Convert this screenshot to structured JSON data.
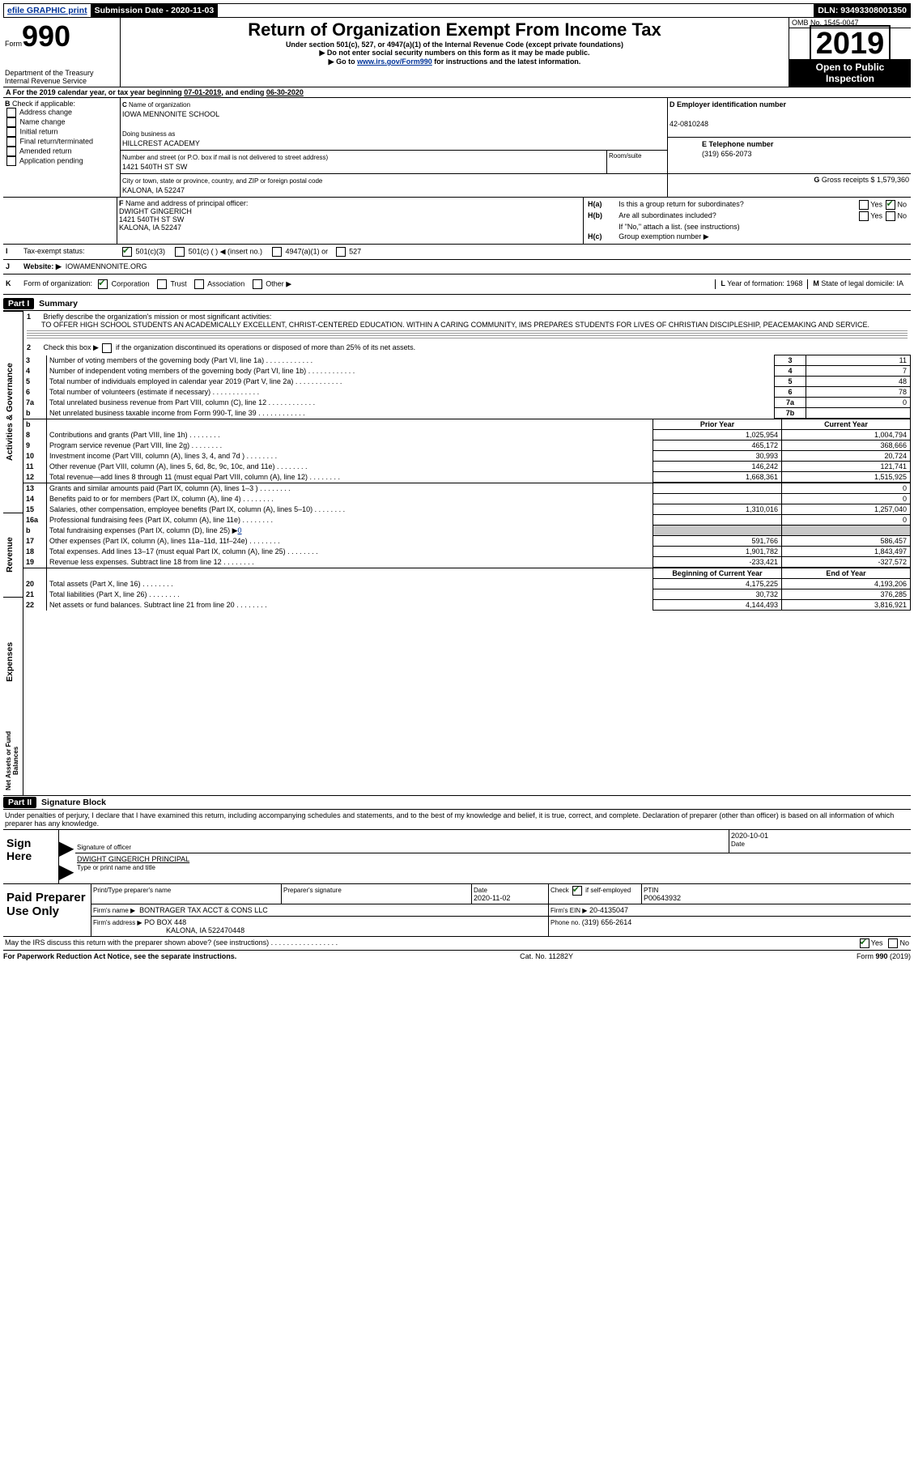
{
  "topbar": {
    "efile": "efile GRAPHIC print",
    "submission_label": "Submission Date - ",
    "submission_date": "2020-11-03",
    "dln_label": "DLN: ",
    "dln": "93493308001350"
  },
  "header": {
    "form_label": "Form",
    "form_no": "990",
    "dept1": "Department of the Treasury",
    "dept2": "Internal Revenue Service",
    "title": "Return of Organization Exempt From Income Tax",
    "subtitle": "Under section 501(c), 527, or 4947(a)(1) of the Internal Revenue Code (except private foundations)",
    "note1": "Do not enter social security numbers on this form as it may be made public.",
    "note2_pre": "Go to ",
    "note2_link": "www.irs.gov/Form990",
    "note2_post": " for instructions and the latest information.",
    "omb_label": "OMB No. ",
    "omb": "1545-0047",
    "year": "2019",
    "open1": "Open to Public",
    "open2": "Inspection"
  },
  "line_a": {
    "text_pre": "For the 2019 calendar year, or tax year beginning ",
    "begin": "07-01-2019",
    "mid": ", and ending ",
    "end": "06-30-2020"
  },
  "box_b": {
    "label": "B",
    "check_label": "Check if applicable:",
    "items": [
      "Address change",
      "Name change",
      "Initial return",
      "Final return/terminated",
      "Amended return",
      "Application pending"
    ]
  },
  "box_c": {
    "label": "C",
    "name_label": "Name of organization",
    "name": "IOWA MENNONITE SCHOOL",
    "dba_label": "Doing business as",
    "dba": "HILLCREST ACADEMY",
    "addr_label": "Number and street (or P.O. box if mail is not delivered to street address)",
    "room_label": "Room/suite",
    "addr": "1421 540TH ST SW",
    "city_label": "City or town, state or province, country, and ZIP or foreign postal code",
    "city": "KALONA, IA  52247"
  },
  "box_d": {
    "label": "D Employer identification number",
    "ein": "42-0810248"
  },
  "box_e": {
    "label": "E Telephone number",
    "phone": "(319) 656-2073"
  },
  "box_g": {
    "label": "G",
    "text": "Gross receipts $ ",
    "val": "1,579,360"
  },
  "box_f": {
    "label": "F",
    "text": "Name and address of principal officer:",
    "name": "DWIGHT GINGERICH",
    "addr": "1421 540TH ST SW",
    "city": "KALONA, IA  52247"
  },
  "box_h": {
    "a_label": "H(a)",
    "a_text": "Is this a group return for subordinates?",
    "b_label": "H(b)",
    "b_text": "Are all subordinates included?",
    "b_note": "If \"No,\" attach a list. (see instructions)",
    "c_label": "H(c)",
    "c_text": "Group exemption number ▶",
    "yes": "Yes",
    "no": "No"
  },
  "box_i": {
    "label": "I",
    "text": "Tax-exempt status:",
    "opts": [
      "501(c)(3)",
      "501(c) (  ) ◀ (insert no.)",
      "4947(a)(1) or",
      "527"
    ]
  },
  "box_j": {
    "label": "J",
    "text": "Website: ▶",
    "val": "IOWAMENNONITE.ORG"
  },
  "box_k": {
    "label": "K",
    "text": "Form of organization:",
    "opts": [
      "Corporation",
      "Trust",
      "Association",
      "Other ▶"
    ]
  },
  "box_l": {
    "label": "L",
    "text": "Year of formation: ",
    "val": "1968"
  },
  "box_m": {
    "label": "M",
    "text": "State of legal domicile: ",
    "val": "IA"
  },
  "part1": {
    "header": "Part I",
    "title": "Summary",
    "q1_label": "1",
    "q1": "Briefly describe the organization's mission or most significant activities:",
    "q1_text": "TO OFFER HIGH SCHOOL STUDENTS AN ACADEMICALLY EXCELLENT, CHRIST-CENTERED EDUCATION. WITHIN A CARING COMMUNITY, IMS PREPARES STUDENTS FOR LIVES OF CHRISTIAN DISCIPLESHIP, PEACEMAKING AND SERVICE.",
    "q2_label": "2",
    "q2": "Check this box ▶       if the organization discontinued its operations or disposed of more than 25% of its net assets.",
    "vert1": "Activities & Governance",
    "vert2": "Revenue",
    "vert3": "Expenses",
    "vert4": "Net Assets or Fund Balances",
    "rows_top": [
      {
        "n": "3",
        "t": "Number of voting members of the governing body (Part VI, line 1a)",
        "box": "3",
        "v": "11"
      },
      {
        "n": "4",
        "t": "Number of independent voting members of the governing body (Part VI, line 1b)",
        "box": "4",
        "v": "7"
      },
      {
        "n": "5",
        "t": "Total number of individuals employed in calendar year 2019 (Part V, line 2a)",
        "box": "5",
        "v": "48"
      },
      {
        "n": "6",
        "t": "Total number of volunteers (estimate if necessary)",
        "box": "6",
        "v": "78"
      },
      {
        "n": "7a",
        "t": "Total unrelated business revenue from Part VIII, column (C), line 12",
        "box": "7a",
        "v": "0"
      },
      {
        "n": "b",
        "t": "Net unrelated business taxable income from Form 990-T, line 39",
        "box": "7b",
        "v": ""
      }
    ],
    "col_prior": "Prior Year",
    "col_current": "Current Year",
    "col_boy": "Beginning of Current Year",
    "col_eoy": "End of Year",
    "rows_rev": [
      {
        "n": "8",
        "t": "Contributions and grants (Part VIII, line 1h)",
        "p": "1,025,954",
        "c": "1,004,794"
      },
      {
        "n": "9",
        "t": "Program service revenue (Part VIII, line 2g)",
        "p": "465,172",
        "c": "368,666"
      },
      {
        "n": "10",
        "t": "Investment income (Part VIII, column (A), lines 3, 4, and 7d )",
        "p": "30,993",
        "c": "20,724"
      },
      {
        "n": "11",
        "t": "Other revenue (Part VIII, column (A), lines 5, 6d, 8c, 9c, 10c, and 11e)",
        "p": "146,242",
        "c": "121,741"
      },
      {
        "n": "12",
        "t": "Total revenue—add lines 8 through 11 (must equal Part VIII, column (A), line 12)",
        "p": "1,668,361",
        "c": "1,515,925"
      }
    ],
    "rows_exp": [
      {
        "n": "13",
        "t": "Grants and similar amounts paid (Part IX, column (A), lines 1–3 )",
        "p": "",
        "c": "0"
      },
      {
        "n": "14",
        "t": "Benefits paid to or for members (Part IX, column (A), line 4)",
        "p": "",
        "c": "0"
      },
      {
        "n": "15",
        "t": "Salaries, other compensation, employee benefits (Part IX, column (A), lines 5–10)",
        "p": "1,310,016",
        "c": "1,257,040"
      },
      {
        "n": "16a",
        "t": "Professional fundraising fees (Part IX, column (A), line 11e)",
        "p": "",
        "c": "0"
      },
      {
        "n": "b",
        "t": "Total fundraising expenses (Part IX, column (D), line 25) ▶",
        "p": "grey",
        "c": "grey",
        "link": "0"
      },
      {
        "n": "17",
        "t": "Other expenses (Part IX, column (A), lines 11a–11d, 11f–24e)",
        "p": "591,766",
        "c": "586,457"
      },
      {
        "n": "18",
        "t": "Total expenses. Add lines 13–17 (must equal Part IX, column (A), line 25)",
        "p": "1,901,782",
        "c": "1,843,497"
      },
      {
        "n": "19",
        "t": "Revenue less expenses. Subtract line 18 from line 12",
        "p": "-233,421",
        "c": "-327,572"
      }
    ],
    "rows_net": [
      {
        "n": "20",
        "t": "Total assets (Part X, line 16)",
        "p": "4,175,225",
        "c": "4,193,206"
      },
      {
        "n": "21",
        "t": "Total liabilities (Part X, line 26)",
        "p": "30,732",
        "c": "376,285"
      },
      {
        "n": "22",
        "t": "Net assets or fund balances. Subtract line 21 from line 20",
        "p": "4,144,493",
        "c": "3,816,921"
      }
    ]
  },
  "part2": {
    "header": "Part II",
    "title": "Signature Block",
    "penalties": "Under penalties of perjury, I declare that I have examined this return, including accompanying schedules and statements, and to the best of my knowledge and belief, it is true, correct, and complete. Declaration of preparer (other than officer) is based on all information of which preparer has any knowledge.",
    "sign_here": "Sign Here",
    "sig_officer": "Signature of officer",
    "date_label": "Date",
    "date": "2020-10-01",
    "officer_name": "DWIGHT GINGERICH  PRINCIPAL",
    "type_label": "Type or print name and title",
    "paid": "Paid Preparer Use Only",
    "prep_name_label": "Print/Type preparer's name",
    "prep_sig_label": "Preparer's signature",
    "prep_date": "2020-11-02",
    "check_self": "Check        if self-employed",
    "ptin_label": "PTIN",
    "ptin": "P00643932",
    "firm_name_label": "Firm's name    ▶",
    "firm_name": "BONTRAGER TAX ACCT & CONS LLC",
    "firm_ein_label": "Firm's EIN ▶",
    "firm_ein": "20-4135047",
    "firm_addr_label": "Firm's address ▶",
    "firm_addr": "PO BOX 448",
    "firm_city": "KALONA, IA  522470448",
    "phone_label": "Phone no. ",
    "phone": "(319) 656-2614",
    "discuss": "May the IRS discuss this return with the preparer shown above? (see instructions)",
    "yes": "Yes",
    "no": "No"
  },
  "footer": {
    "paperwork": "For Paperwork Reduction Act Notice, see the separate instructions.",
    "cat": "Cat. No. 11282Y",
    "form": "Form 990 (2019)"
  }
}
